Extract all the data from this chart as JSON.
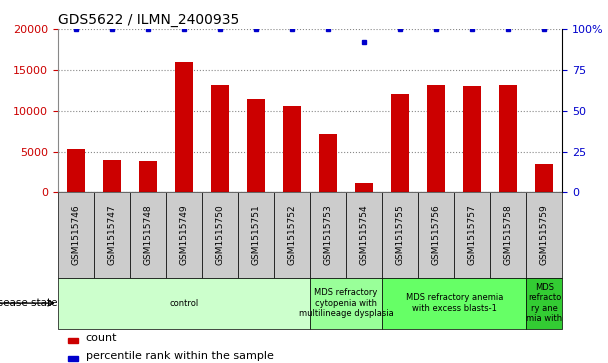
{
  "title": "GDS5622 / ILMN_2400935",
  "samples": [
    "GSM1515746",
    "GSM1515747",
    "GSM1515748",
    "GSM1515749",
    "GSM1515750",
    "GSM1515751",
    "GSM1515752",
    "GSM1515753",
    "GSM1515754",
    "GSM1515755",
    "GSM1515756",
    "GSM1515757",
    "GSM1515758",
    "GSM1515759"
  ],
  "counts": [
    5300,
    4000,
    3900,
    16000,
    13200,
    11400,
    10600,
    7200,
    1100,
    12000,
    13200,
    13000,
    13200,
    3500
  ],
  "percentile_ranks": [
    100,
    100,
    100,
    100,
    100,
    100,
    100,
    100,
    92,
    100,
    100,
    100,
    100,
    100
  ],
  "bar_color": "#cc0000",
  "dot_color": "#0000cc",
  "ylim_left": [
    0,
    20000
  ],
  "ylim_right": [
    0,
    100
  ],
  "yticks_left": [
    0,
    5000,
    10000,
    15000,
    20000
  ],
  "yticks_right": [
    0,
    25,
    50,
    75,
    100
  ],
  "disease_groups": [
    {
      "label": "control",
      "start": 0,
      "end": 7,
      "color": "#ccffcc"
    },
    {
      "label": "MDS refractory\ncytopenia with\nmultilineage dysplasia",
      "start": 7,
      "end": 9,
      "color": "#99ff99"
    },
    {
      "label": "MDS refractory anemia\nwith excess blasts-1",
      "start": 9,
      "end": 13,
      "color": "#66ff66"
    },
    {
      "label": "MDS\nrefracto\nry ane\nmia with",
      "start": 13,
      "end": 14,
      "color": "#33cc33"
    }
  ],
  "disease_state_label": "disease state",
  "legend_count_label": "count",
  "legend_percentile_label": "percentile rank within the sample",
  "bar_width": 0.5,
  "grid_style": "dotted",
  "grid_color": "#888888",
  "tick_box_color": "#cccccc"
}
